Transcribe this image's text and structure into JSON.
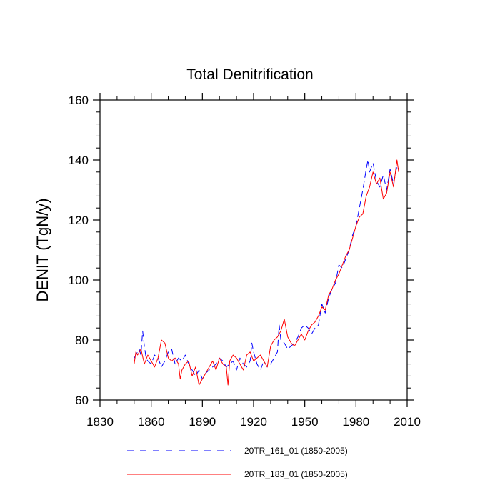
{
  "chart_data": {
    "type": "line",
    "title": "Total Denitrification",
    "xlabel": "",
    "ylabel": "DENIT  (TgN/y)",
    "xlim": [
      1830,
      2010
    ],
    "ylim": [
      60,
      160
    ],
    "xticks": [
      1830,
      1860,
      1890,
      1920,
      1950,
      1980,
      2010
    ],
    "yticks": [
      60,
      80,
      100,
      120,
      140,
      160
    ],
    "x_minor_step": 10,
    "y_minor_step": 4,
    "grid": false,
    "legend_position": "bottom",
    "series": [
      {
        "name": "20TR_161_01 (1850-2005)",
        "color": "#0000ff",
        "style": "dashed",
        "x": [
          1850,
          1852,
          1853,
          1854,
          1855,
          1856,
          1857,
          1858,
          1860,
          1862,
          1864,
          1866,
          1868,
          1870,
          1872,
          1874,
          1876,
          1878,
          1880,
          1882,
          1884,
          1886,
          1888,
          1890,
          1892,
          1894,
          1896,
          1898,
          1900,
          1902,
          1904,
          1906,
          1908,
          1910,
          1912,
          1914,
          1916,
          1918,
          1919,
          1920,
          1922,
          1924,
          1926,
          1928,
          1930,
          1932,
          1934,
          1935,
          1936,
          1938,
          1940,
          1942,
          1944,
          1946,
          1948,
          1950,
          1952,
          1954,
          1956,
          1958,
          1960,
          1962,
          1964,
          1966,
          1968,
          1970,
          1972,
          1974,
          1976,
          1978,
          1980,
          1982,
          1984,
          1986,
          1987,
          1988,
          1990,
          1992,
          1994,
          1996,
          1998,
          2000,
          2002,
          2004,
          2005
        ],
        "values": [
          74,
          76,
          77,
          75,
          83,
          78,
          74,
          73,
          72,
          75,
          74,
          71,
          73,
          76,
          77,
          72,
          74,
          73,
          75,
          72,
          70,
          68,
          70,
          67,
          69,
          70,
          71,
          72,
          74,
          73,
          71,
          72,
          73,
          70,
          74,
          72,
          71,
          73,
          79,
          76,
          72,
          70,
          73,
          71,
          72,
          74,
          76,
          85,
          80,
          79,
          77,
          78,
          79,
          81,
          84,
          85,
          84,
          82,
          84,
          85,
          92,
          89,
          94,
          97,
          99,
          105,
          104,
          107,
          110,
          115,
          118,
          124,
          130,
          137,
          140,
          136,
          139,
          133,
          131,
          135,
          130,
          137,
          132,
          138,
          137
        ]
      },
      {
        "name": "20TR_183_01 (1850-2005)",
        "color": "#ff0000",
        "style": "solid",
        "x": [
          1850,
          1851,
          1852,
          1854,
          1856,
          1858,
          1860,
          1862,
          1864,
          1866,
          1868,
          1870,
          1872,
          1874,
          1876,
          1877,
          1878,
          1880,
          1882,
          1884,
          1886,
          1888,
          1890,
          1892,
          1894,
          1896,
          1898,
          1900,
          1902,
          1904,
          1905,
          1906,
          1908,
          1910,
          1912,
          1914,
          1916,
          1918,
          1920,
          1922,
          1924,
          1926,
          1928,
          1930,
          1932,
          1934,
          1936,
          1938,
          1940,
          1942,
          1944,
          1946,
          1948,
          1950,
          1952,
          1954,
          1956,
          1958,
          1960,
          1962,
          1964,
          1966,
          1968,
          1970,
          1972,
          1974,
          1976,
          1978,
          1980,
          1982,
          1984,
          1986,
          1988,
          1990,
          1992,
          1994,
          1996,
          1998,
          2000,
          2002,
          2004,
          2005
        ],
        "values": [
          72,
          76,
          75,
          77,
          72,
          75,
          73,
          71,
          74,
          80,
          79,
          74,
          73,
          74,
          72,
          67,
          70,
          72,
          73,
          68,
          71,
          65,
          67,
          69,
          71,
          73,
          70,
          74,
          72,
          71,
          65,
          73,
          75,
          74,
          72,
          70,
          75,
          76,
          73,
          74,
          75,
          73,
          71,
          78,
          80,
          81,
          83,
          87,
          81,
          79,
          78,
          80,
          82,
          80,
          83,
          85,
          86,
          88,
          91,
          90,
          95,
          97,
          100,
          102,
          105,
          108,
          110,
          114,
          118,
          121,
          122,
          128,
          131,
          136,
          132,
          134,
          127,
          129,
          136,
          131,
          140,
          136
        ]
      }
    ]
  }
}
